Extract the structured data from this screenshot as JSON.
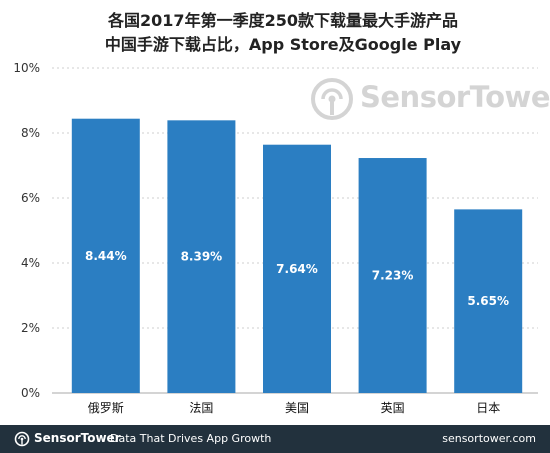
{
  "header": {
    "title_line1": "各国2017年第一季度250款下载量最大手游产品",
    "title_line2": "中国手游下载占比，App Store及Google Play"
  },
  "watermark": {
    "text": "SensorTower",
    "icon": "sensor-tower-logo-icon"
  },
  "footer": {
    "brand": "SensorTower",
    "tagline": "Data That Drives App Growth",
    "url": "sensortower.com",
    "background_color": "#22313d"
  },
  "chart_data": {
    "type": "bar",
    "categories": [
      "俄罗斯",
      "法国",
      "美国",
      "英国",
      "日本"
    ],
    "values": [
      8.44,
      8.39,
      7.64,
      7.23,
      5.65
    ],
    "value_labels": [
      "8.44%",
      "8.39%",
      "7.64%",
      "7.23%",
      "5.65%"
    ],
    "yticks": [
      "0%",
      "2%",
      "4%",
      "6%",
      "8%",
      "10%"
    ],
    "ylim": [
      0,
      10
    ],
    "title": "各国2017年第一季度250款下载量最大手游产品 中国手游下载占比，App Store及Google Play",
    "xlabel": "",
    "ylabel": "",
    "grid": true,
    "bar_color": "#2b7ec2"
  }
}
